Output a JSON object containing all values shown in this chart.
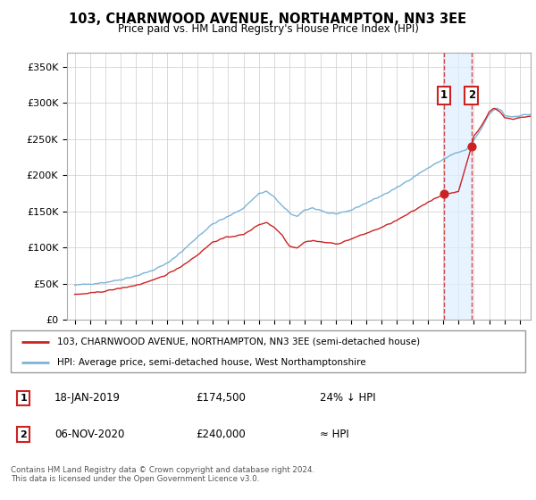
{
  "title": "103, CHARNWOOD AVENUE, NORTHAMPTON, NN3 3EE",
  "subtitle": "Price paid vs. HM Land Registry's House Price Index (HPI)",
  "legend_line1": "103, CHARNWOOD AVENUE, NORTHAMPTON, NN3 3EE (semi-detached house)",
  "legend_line2": "HPI: Average price, semi-detached house, West Northamptonshire",
  "annotation1_date": "18-JAN-2019",
  "annotation1_price": "£174,500",
  "annotation1_note": "24% ↓ HPI",
  "annotation2_date": "06-NOV-2020",
  "annotation2_price": "£240,000",
  "annotation2_note": "≈ HPI",
  "footer": "Contains HM Land Registry data © Crown copyright and database right 2024.\nThis data is licensed under the Open Government Licence v3.0.",
  "ylabel_ticks": [
    "£0",
    "£50K",
    "£100K",
    "£150K",
    "£200K",
    "£250K",
    "£300K",
    "£350K"
  ],
  "ytick_vals": [
    0,
    50000,
    100000,
    150000,
    200000,
    250000,
    300000,
    350000
  ],
  "ylim": [
    0,
    370000
  ],
  "hpi_color": "#7ab4d8",
  "price_color": "#cc2222",
  "vline_color": "#cc2222",
  "shade_color": "#ddeeff",
  "grid_color": "#cccccc",
  "sale1_year": 2019.05,
  "sale1_price": 174500,
  "sale2_year": 2020.85,
  "sale2_price": 240000,
  "xlim_start": 1994.5,
  "xlim_end": 2024.7,
  "xtick_years": [
    1995,
    1996,
    1997,
    1998,
    1999,
    2000,
    2001,
    2002,
    2003,
    2004,
    2005,
    2006,
    2007,
    2008,
    2009,
    2010,
    2011,
    2012,
    2013,
    2014,
    2015,
    2016,
    2017,
    2018,
    2019,
    2020,
    2021,
    2022,
    2023,
    2024
  ]
}
